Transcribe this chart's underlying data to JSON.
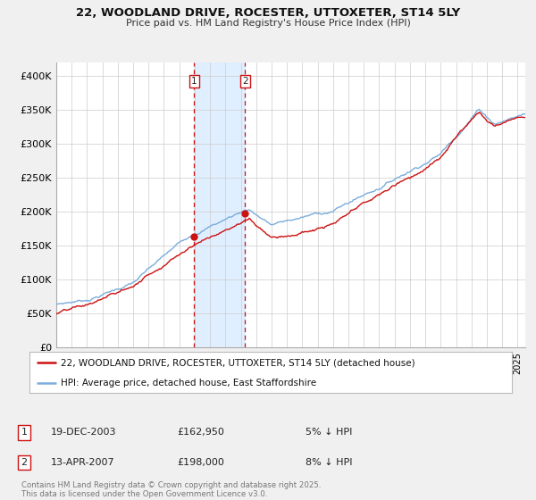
{
  "title": "22, WOODLAND DRIVE, ROCESTER, UTTOXETER, ST14 5LY",
  "subtitle": "Price paid vs. HM Land Registry's House Price Index (HPI)",
  "ylabel_ticks": [
    "£0",
    "£50K",
    "£100K",
    "£150K",
    "£200K",
    "£250K",
    "£300K",
    "£350K",
    "£400K"
  ],
  "ytick_values": [
    0,
    50000,
    100000,
    150000,
    200000,
    250000,
    300000,
    350000,
    400000
  ],
  "ylim": [
    0,
    420000
  ],
  "xlim_start": 1995.0,
  "xlim_end": 2025.5,
  "hpi_color": "#7aaddc",
  "price_color": "#cc1111",
  "sale1_date": 2003.97,
  "sale1_price": 162950,
  "sale2_date": 2007.28,
  "sale2_price": 198000,
  "legend_line1": "22, WOODLAND DRIVE, ROCESTER, UTTOXETER, ST14 5LY (detached house)",
  "legend_line2": "HPI: Average price, detached house, East Staffordshire",
  "table_row1": [
    "1",
    "19-DEC-2003",
    "£162,950",
    "5% ↓ HPI"
  ],
  "table_row2": [
    "2",
    "13-APR-2007",
    "£198,000",
    "8% ↓ HPI"
  ],
  "footer": "Contains HM Land Registry data © Crown copyright and database right 2025.\nThis data is licensed under the Open Government Licence v3.0.",
  "background_color": "#f0f0f0",
  "plot_bg_color": "#ffffff",
  "grid_color": "#cccccc",
  "shade_color": "#ddeeff"
}
